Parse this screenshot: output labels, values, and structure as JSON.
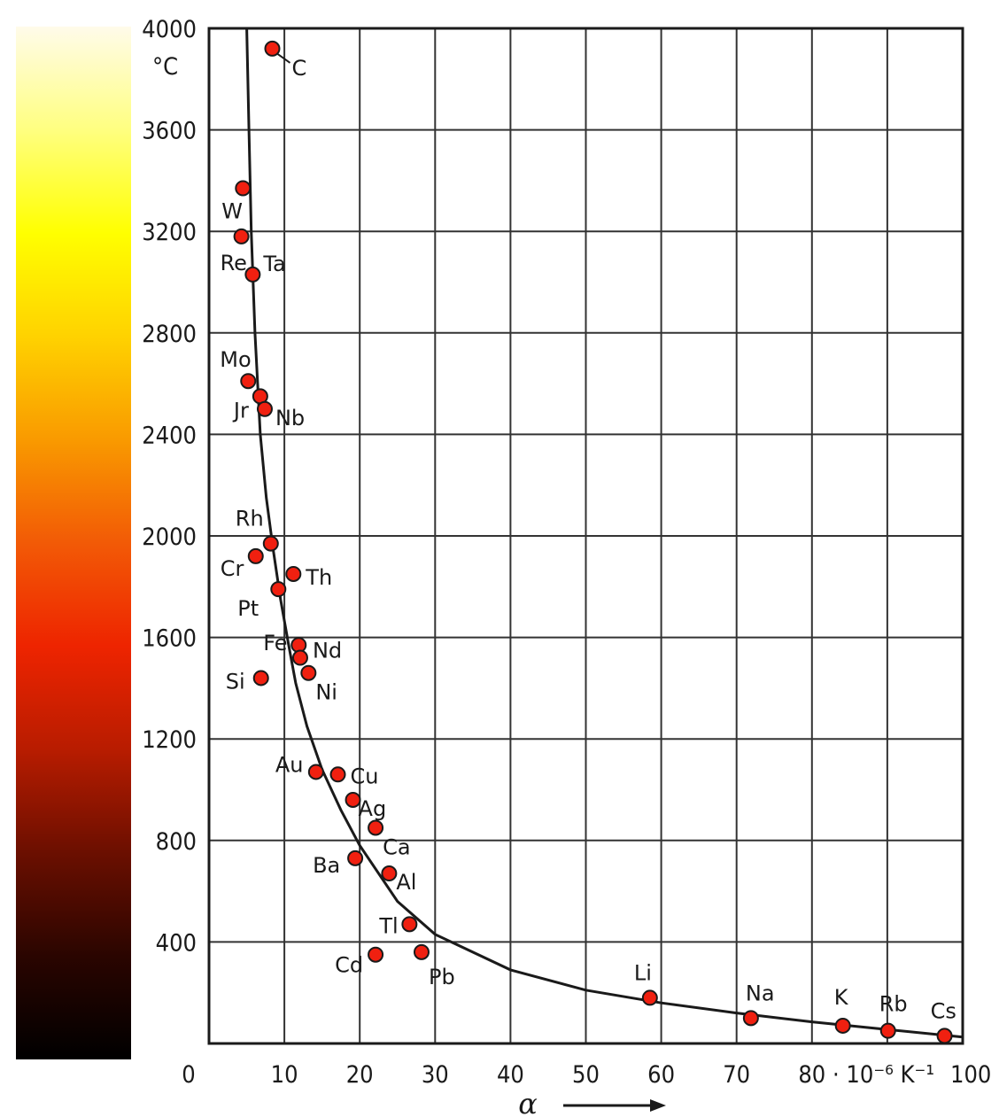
{
  "colorbar": {
    "stops": [
      "#000000",
      "#2a0500",
      "#6b0f00",
      "#b81c00",
      "#ee2400",
      "#f25a06",
      "#f99a00",
      "#ffd200",
      "#ffff00",
      "#ffff80",
      "#fffbea"
    ]
  },
  "chart_data": {
    "type": "scatter",
    "xlabel": "α",
    "ylabel": "°C",
    "x_unit_label": "· 10⁻⁶ K⁻¹",
    "xlim": [
      0,
      100
    ],
    "ylim": [
      0,
      4000
    ],
    "grid": true,
    "x_ticks": [
      0,
      10,
      20,
      30,
      40,
      50,
      60,
      70,
      80,
      100
    ],
    "y_ticks": [
      400,
      800,
      1200,
      1600,
      2000,
      2400,
      2800,
      3200,
      3600,
      4000
    ],
    "point_color": "#f02010",
    "points": [
      {
        "label": "C",
        "x": 8.4,
        "y": 3920
      },
      {
        "label": "W",
        "x": 4.5,
        "y": 3370
      },
      {
        "label": "Re",
        "x": 4.3,
        "y": 3180
      },
      {
        "label": "Ta",
        "x": 5.8,
        "y": 3030
      },
      {
        "label": "Mo",
        "x": 5.2,
        "y": 2610
      },
      {
        "label": "Jr",
        "x": 6.8,
        "y": 2550
      },
      {
        "label": "Nb",
        "x": 7.4,
        "y": 2500
      },
      {
        "label": "Rh",
        "x": 8.2,
        "y": 1970
      },
      {
        "label": "Cr",
        "x": 6.2,
        "y": 1920
      },
      {
        "label": "Th",
        "x": 11.2,
        "y": 1850
      },
      {
        "label": "Pt",
        "x": 9.2,
        "y": 1790
      },
      {
        "label": "Fe",
        "x": 11.9,
        "y": 1570
      },
      {
        "label": "Nd",
        "x": 12.1,
        "y": 1520
      },
      {
        "label": "Si",
        "x": 6.9,
        "y": 1440
      },
      {
        "label": "Ni",
        "x": 13.2,
        "y": 1460
      },
      {
        "label": "Au",
        "x": 14.2,
        "y": 1070
      },
      {
        "label": "Cu",
        "x": 17.1,
        "y": 1060
      },
      {
        "label": "Ag",
        "x": 19.1,
        "y": 960
      },
      {
        "label": "Ca",
        "x": 22.1,
        "y": 850
      },
      {
        "label": "Ba",
        "x": 19.4,
        "y": 730
      },
      {
        "label": "Al",
        "x": 23.9,
        "y": 670
      },
      {
        "label": "Tl",
        "x": 26.6,
        "y": 470
      },
      {
        "label": "Cd",
        "x": 22.1,
        "y": 350
      },
      {
        "label": "Pb",
        "x": 28.2,
        "y": 360
      },
      {
        "label": "Li",
        "x": 58.5,
        "y": 180
      },
      {
        "label": "Na",
        "x": 71.9,
        "y": 100
      },
      {
        "label": "K",
        "x": 84.1,
        "y": 70
      },
      {
        "label": "Rb",
        "x": 90.1,
        "y": 50
      },
      {
        "label": "Cs",
        "x": 97.6,
        "y": 30
      }
    ],
    "curve": {
      "x": [
        5.0,
        5.3,
        5.6,
        6.1,
        6.8,
        7.6,
        8.5,
        9.5,
        10.5,
        11.5,
        13.0,
        15.0,
        17.5,
        20.0,
        25.0,
        30.0,
        40.0,
        50.0,
        60.0,
        70.0,
        80.0,
        90.0,
        100.0
      ],
      "y": [
        4000,
        3600,
        3200,
        2800,
        2400,
        2150,
        1950,
        1750,
        1580,
        1420,
        1250,
        1080,
        920,
        780,
        560,
        430,
        290,
        210,
        160,
        120,
        85,
        55,
        25
      ]
    }
  }
}
